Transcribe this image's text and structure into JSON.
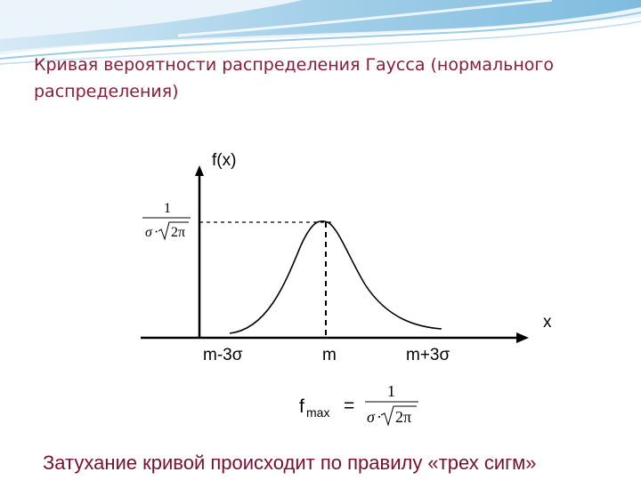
{
  "title": "Кривая вероятности распределения Гаусса (нормального распределения)",
  "footer": "Затухание кривой происходит по правилу «трех сигм»",
  "diagram": {
    "y_axis_label": "f(x)",
    "x_axis_label": "x",
    "tick_left": "m-3σ",
    "tick_center": "m",
    "tick_right": "m+3σ",
    "peak_label": {
      "numerator": "1",
      "denominator_sigma": "σ",
      "denominator_dot": "·",
      "denominator_root": "2π"
    },
    "formula": {
      "f": "f",
      "subscript": "max",
      "equals": "=",
      "numerator": "1",
      "denominator_sigma": "σ",
      "denominator_dot": "·",
      "denominator_root": "2π"
    }
  },
  "colors": {
    "title": "#8b1c3a",
    "footer": "#7a1030",
    "header_band": "#5aa9d6"
  }
}
